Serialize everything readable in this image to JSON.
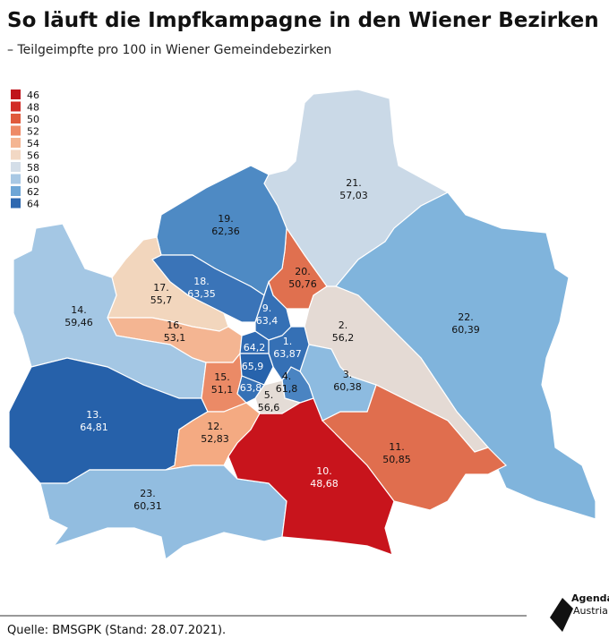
{
  "header": {
    "title": "So läuft die Impfkampagne in den Wiener Bezirken",
    "subtitle": "– Teilgeimpfte pro 100 in Wiener Gemeindebezirken"
  },
  "legend": {
    "items": [
      {
        "label": "46",
        "color": "#c0141c"
      },
      {
        "label": "48",
        "color": "#d12b26"
      },
      {
        "label": "50",
        "color": "#e05a3c"
      },
      {
        "label": "52",
        "color": "#ee8a66"
      },
      {
        "label": "54",
        "color": "#f4b592"
      },
      {
        "label": "56",
        "color": "#f2d8c4"
      },
      {
        "label": "58",
        "color": "#d4dee8"
      },
      {
        "label": "60",
        "color": "#a8c8e4"
      },
      {
        "label": "62",
        "color": "#6ea6d6"
      },
      {
        "label": "64",
        "color": "#2e68b0"
      }
    ]
  },
  "districts": [
    {
      "id": "21.",
      "value": "57,03",
      "color": "#cad9e7"
    },
    {
      "id": "22.",
      "value": "60,39",
      "color": "#80b4dc"
    },
    {
      "id": "20.",
      "value": "50,76",
      "color": "#e0704f"
    },
    {
      "id": "2.",
      "value": "56,2",
      "color": "#e4dad4"
    },
    {
      "id": "19.",
      "value": "62,36",
      "color": "#4e8ac4"
    },
    {
      "id": "18.",
      "value": "63,35",
      "color": "#3a74b8"
    },
    {
      "id": "9.",
      "value": "63,4",
      "color": "#3570b5"
    },
    {
      "id": "17.",
      "value": "55,7",
      "color": "#f2d6bd"
    },
    {
      "id": "16.",
      "value": "53,1",
      "color": "#f4b592"
    },
    {
      "id": "14.",
      "value": "59,46",
      "color": "#a4c7e4"
    },
    {
      "id": "13.",
      "value": "64,81",
      "color": "#2661aa"
    },
    {
      "id": "15.",
      "value": "51,1",
      "color": "#eb8a66"
    },
    {
      "id": "12.",
      "value": "52,83",
      "color": "#f4aa82"
    },
    {
      "id": "23.",
      "value": "60,31",
      "color": "#92bde0"
    },
    {
      "id": "10.",
      "value": "48,68",
      "color": "#c8141c"
    },
    {
      "id": "11.",
      "value": "50,85",
      "color": "#e06e4e"
    },
    {
      "id": "3.",
      "value": "60,38",
      "color": "#8dbbe0"
    },
    {
      "id": "4.",
      "value": "61,8",
      "color": "#4a84c2"
    },
    {
      "id": "5.",
      "value": "56,6",
      "color": "#e4dcd6"
    },
    {
      "id": "1.",
      "value": "63,87",
      "color": "#3570b5"
    },
    {
      "value": "64,2",
      "color": "#2f6ab2"
    },
    {
      "value": "65,9",
      "color": "#2763ac"
    },
    {
      "value": "63,8",
      "color": "#3571b6"
    }
  ],
  "footer": {
    "source": "Quelle: BMSGPK (Stand: 28.07.2021).",
    "logo": [
      "Agenda",
      "Austria"
    ]
  }
}
